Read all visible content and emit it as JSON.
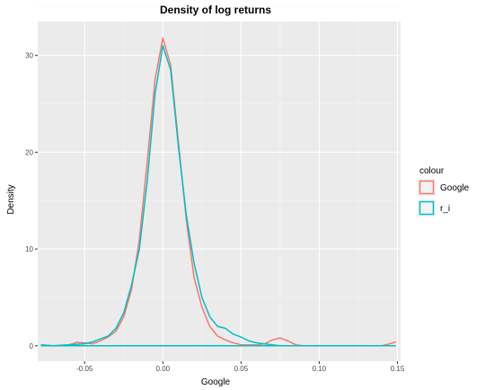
{
  "chart_data": {
    "type": "line",
    "title": "Density of log returns",
    "xlabel": "Google",
    "ylabel": "Density",
    "xlim": [
      -0.08,
      0.152
    ],
    "ylim": [
      -1.6,
      33.5
    ],
    "x_ticks": [
      -0.05,
      0.0,
      0.05,
      0.1,
      0.15
    ],
    "x_tick_labels": [
      "-0.05",
      "0.00",
      "0.05",
      "0.10",
      "0.15"
    ],
    "y_ticks": [
      0,
      10,
      20,
      30
    ],
    "y_tick_labels": [
      "0",
      "10",
      "20",
      "30"
    ],
    "grid": true,
    "legend": {
      "title": "colour",
      "position": "right"
    },
    "series": [
      {
        "name": "Google",
        "color": "#f8766d",
        "points": [
          [
            -0.078,
            0.05
          ],
          [
            -0.07,
            0.0
          ],
          [
            -0.06,
            0.1
          ],
          [
            -0.055,
            0.35
          ],
          [
            -0.05,
            0.3
          ],
          [
            -0.045,
            0.2
          ],
          [
            -0.04,
            0.5
          ],
          [
            -0.035,
            0.9
          ],
          [
            -0.03,
            1.5
          ],
          [
            -0.025,
            3.0
          ],
          [
            -0.02,
            5.8
          ],
          [
            -0.015,
            11.0
          ],
          [
            -0.01,
            19.0
          ],
          [
            -0.005,
            27.5
          ],
          [
            0.0,
            31.8
          ],
          [
            0.005,
            29.0
          ],
          [
            0.01,
            21.0
          ],
          [
            0.015,
            13.0
          ],
          [
            0.02,
            7.0
          ],
          [
            0.025,
            4.0
          ],
          [
            0.03,
            2.0
          ],
          [
            0.035,
            1.0
          ],
          [
            0.04,
            0.6
          ],
          [
            0.045,
            0.3
          ],
          [
            0.05,
            0.1
          ],
          [
            0.06,
            0.1
          ],
          [
            0.065,
            0.2
          ],
          [
            0.07,
            0.6
          ],
          [
            0.075,
            0.8
          ],
          [
            0.08,
            0.5
          ],
          [
            0.085,
            0.1
          ],
          [
            0.09,
            0.0
          ],
          [
            0.1,
            0.0
          ],
          [
            0.12,
            0.0
          ],
          [
            0.14,
            0.0
          ],
          [
            0.145,
            0.2
          ],
          [
            0.149,
            0.4
          ]
        ]
      },
      {
        "name": "r_i",
        "color": "#00bfc4",
        "baseline_line": {
          "x": [
            -0.078,
            0.149
          ],
          "y": 0.0
        },
        "points": [
          [
            -0.078,
            0.1
          ],
          [
            -0.07,
            0.0
          ],
          [
            -0.06,
            0.1
          ],
          [
            -0.05,
            0.2
          ],
          [
            -0.045,
            0.4
          ],
          [
            -0.04,
            0.7
          ],
          [
            -0.035,
            1.0
          ],
          [
            -0.03,
            1.8
          ],
          [
            -0.025,
            3.4
          ],
          [
            -0.02,
            6.3
          ],
          [
            -0.015,
            10.0
          ],
          [
            -0.01,
            17.0
          ],
          [
            -0.005,
            26.0
          ],
          [
            0.0,
            31.0
          ],
          [
            0.005,
            28.5
          ],
          [
            0.01,
            20.5
          ],
          [
            0.015,
            13.5
          ],
          [
            0.02,
            8.5
          ],
          [
            0.025,
            5.0
          ],
          [
            0.03,
            3.0
          ],
          [
            0.035,
            2.0
          ],
          [
            0.04,
            1.8
          ],
          [
            0.045,
            1.2
          ],
          [
            0.05,
            0.9
          ],
          [
            0.055,
            0.5
          ],
          [
            0.06,
            0.3
          ],
          [
            0.065,
            0.2
          ],
          [
            0.07,
            0.1
          ],
          [
            0.075,
            0.0
          ],
          [
            0.08,
            0.0
          ]
        ]
      }
    ]
  }
}
